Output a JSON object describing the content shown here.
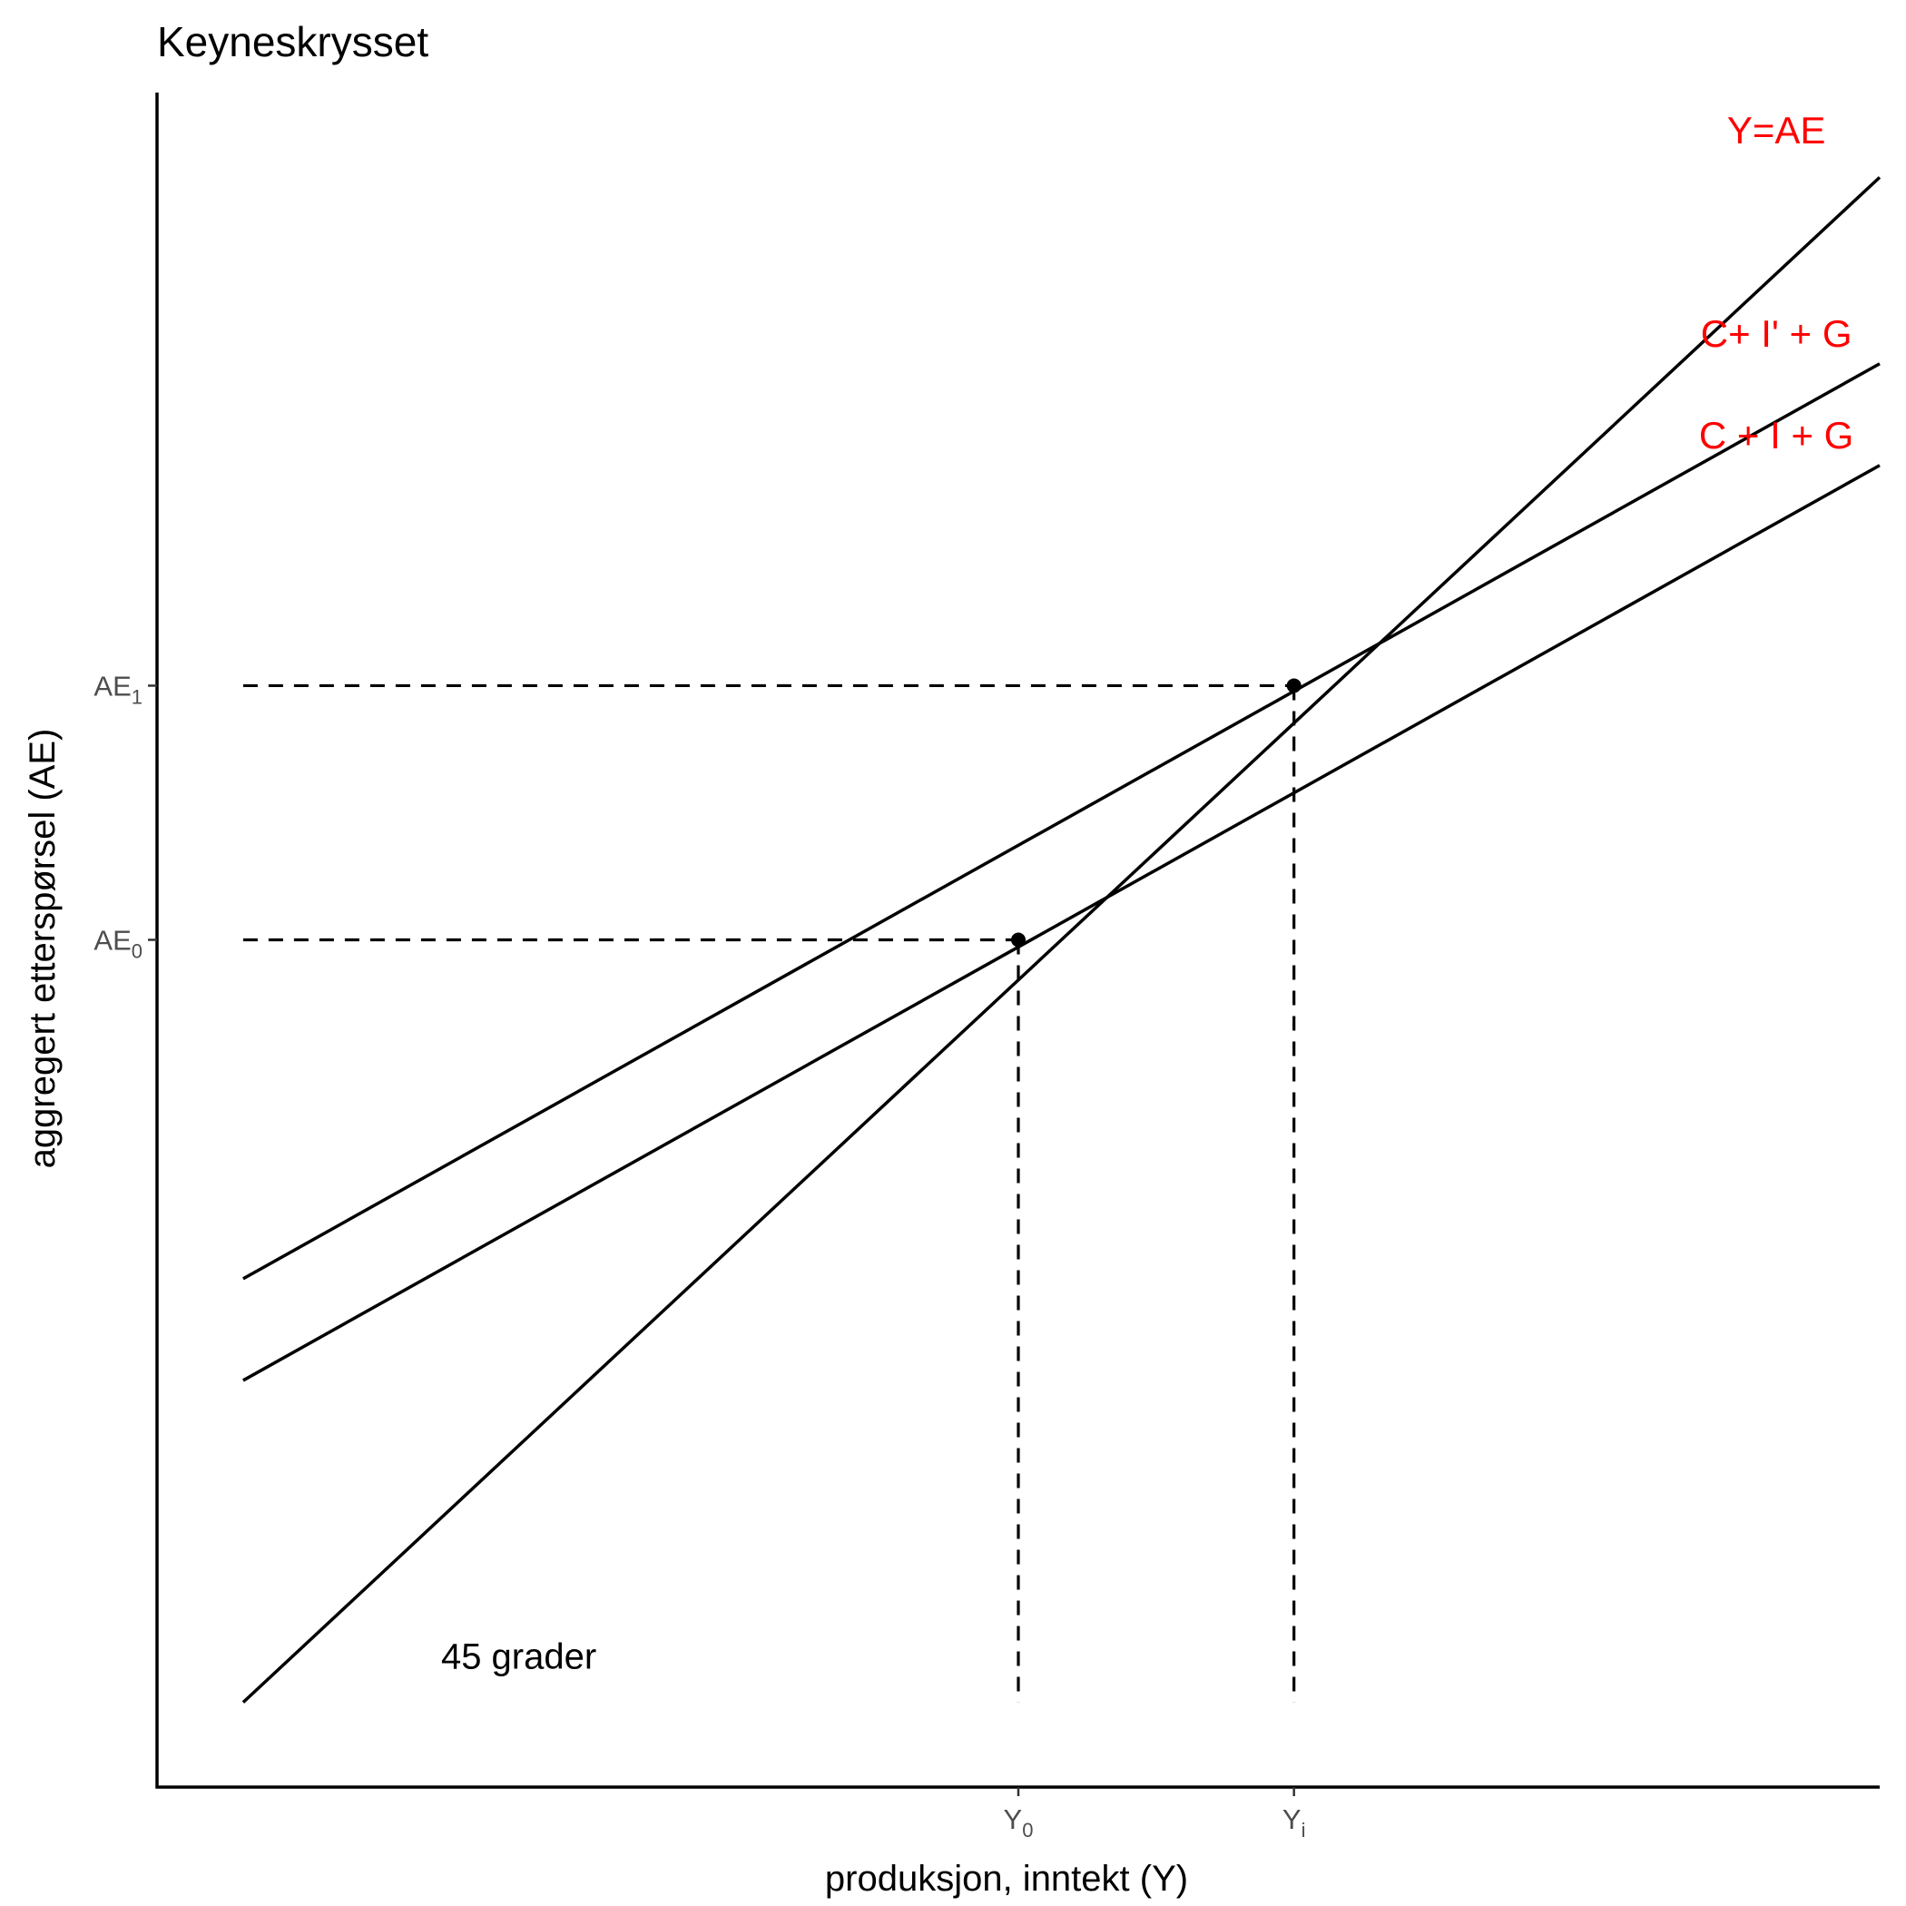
{
  "chart_data": {
    "type": "line",
    "title": "Keyneskrysset",
    "xlabel": "produksjon, inntekt (Y)",
    "ylabel": "aggregert etterspørsel (AE)",
    "xlim": [
      0,
      100
    ],
    "ylim": [
      0,
      100
    ],
    "grid": false,
    "x_ticks": [
      {
        "value": 50,
        "base": "Y",
        "sub": "0"
      },
      {
        "value": 66,
        "base": "Y",
        "sub": "i"
      }
    ],
    "y_ticks": [
      {
        "value": 50,
        "base": "AE",
        "sub": "0"
      },
      {
        "value": 65,
        "base": "AE",
        "sub": "1"
      }
    ],
    "series": [
      {
        "key": "yae",
        "x": [
          5,
          100
        ],
        "y": [
          5,
          95
        ],
        "label_color": "#ff0000"
      },
      {
        "key": "cig",
        "x": [
          5,
          100
        ],
        "y": [
          24,
          78
        ],
        "label_color": "#ff0000"
      },
      {
        "key": "cipg",
        "x": [
          5,
          100
        ],
        "y": [
          30,
          84
        ],
        "label_color": "#ff0000"
      }
    ],
    "curve_labels": [
      {
        "text": "Y=AE",
        "x": 94,
        "y": 97
      },
      {
        "text": "C+ I' + G",
        "x": 94,
        "y": 85
      },
      {
        "text": "C + I + G",
        "x": 94,
        "y": 79
      }
    ],
    "equilibria": [
      {
        "x": 50,
        "y": 50
      },
      {
        "x": 66,
        "y": 65
      }
    ],
    "guides": {
      "x_start": 5,
      "y_floor": 5
    },
    "annotations": [
      {
        "text": "45 grader",
        "x": 21,
        "y": 7
      }
    ]
  }
}
